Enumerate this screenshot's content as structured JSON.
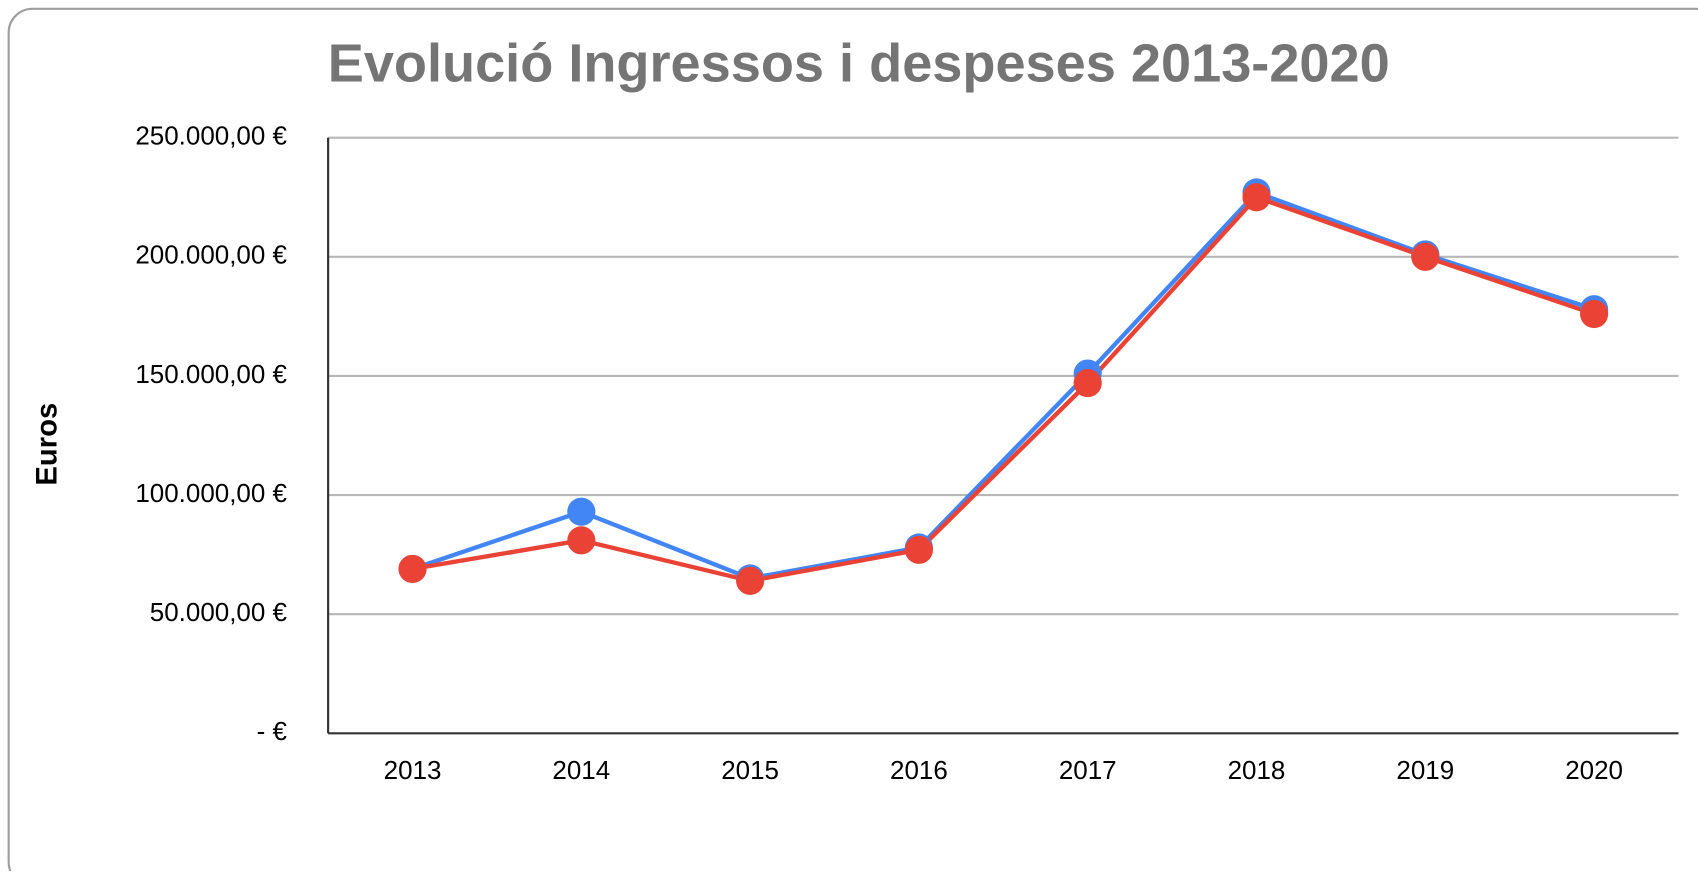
{
  "chart_data": {
    "type": "line",
    "title": "Evolució Ingressos i despeses 2013-2020",
    "y_label": "Euros",
    "categories": [
      "2013",
      "2014",
      "2015",
      "2016",
      "2017",
      "2018",
      "2019",
      "2020"
    ],
    "series": [
      {
        "color": "#4285f4",
        "values": [
          69000,
          93000,
          65000,
          78000,
          151000,
          227000,
          201000,
          178000
        ]
      },
      {
        "color": "#ea4335",
        "values": [
          69000,
          81000,
          64000,
          77000,
          147000,
          225000,
          200000,
          176000
        ]
      }
    ],
    "ylim": [
      0,
      250000
    ],
    "yticks": [
      {
        "value": 0,
        "label": "-   €"
      },
      {
        "value": 50000,
        "label": "50.000,00 €"
      },
      {
        "value": 100000,
        "label": "100.000,00 €"
      },
      {
        "value": 150000,
        "label": "150.000,00 €"
      },
      {
        "value": 200000,
        "label": "200.000,00 €"
      },
      {
        "value": 250000,
        "label": "250.000,00 €"
      }
    ],
    "grid": true
  }
}
